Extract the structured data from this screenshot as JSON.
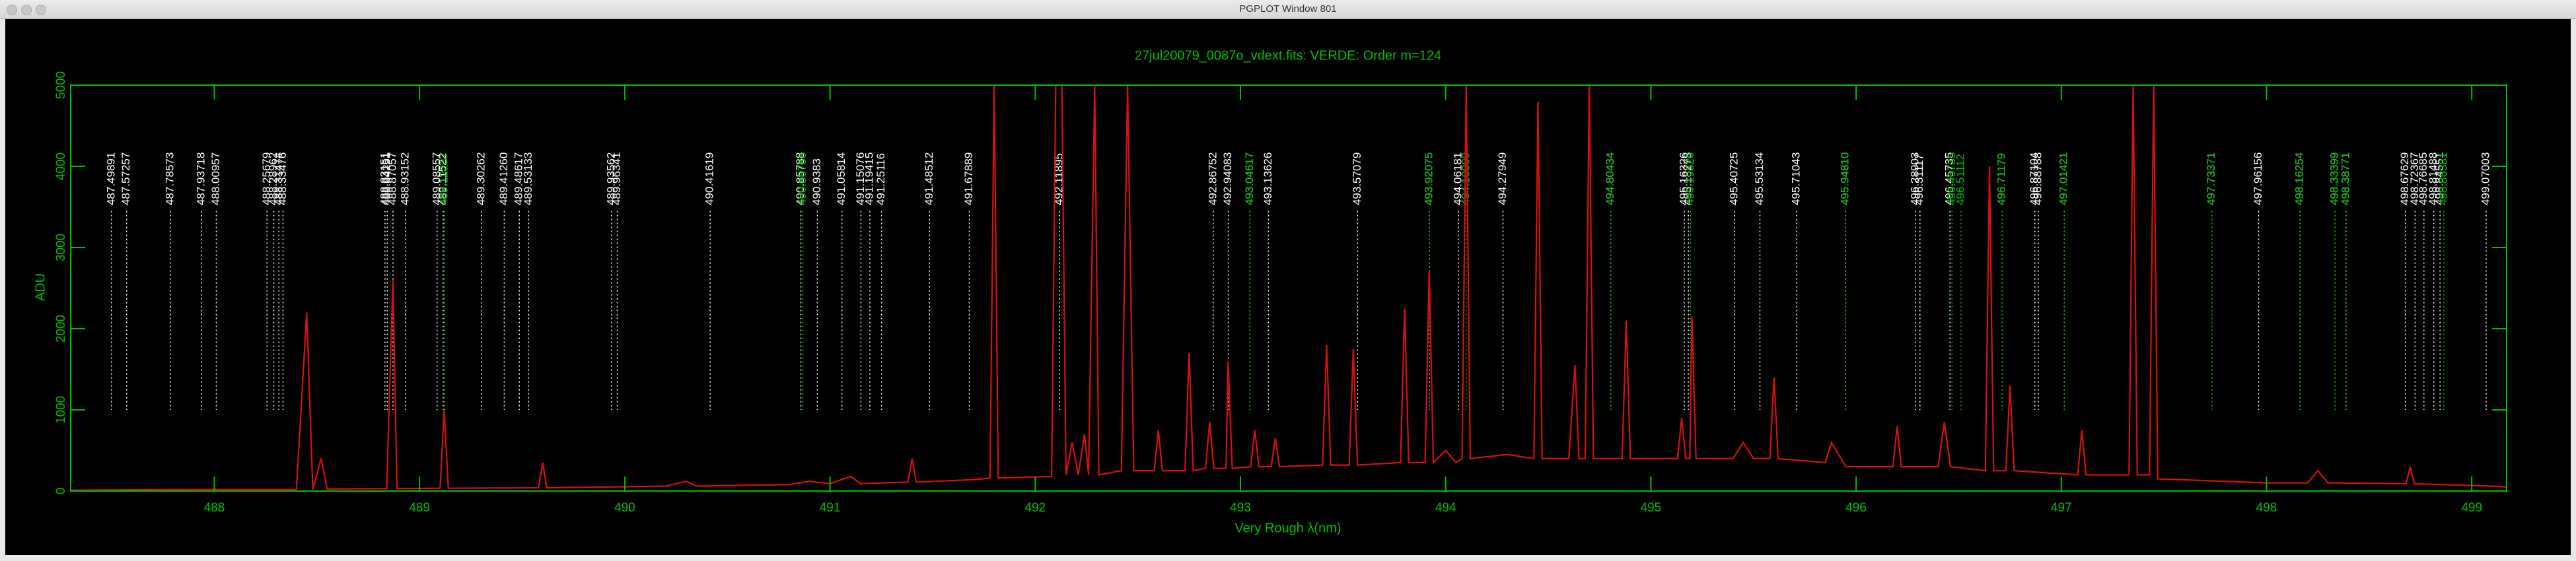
{
  "window_title": "PGPLOT Window 801",
  "chart_data": {
    "type": "line",
    "title": "27jul20079_0087o_vdext.fits: VERDE: Order m=124",
    "x_label": "Very Rough λ(nm)",
    "y_label": "ADU",
    "xlim": [
      487.3,
      499.17
    ],
    "ylim": [
      0,
      5000
    ],
    "xticks": [
      488,
      489,
      490,
      491,
      492,
      493,
      494,
      495,
      496,
      497,
      498,
      499
    ],
    "yticks": [
      0,
      1000,
      2000,
      3000,
      4000,
      5000
    ],
    "axis_color": "#00c000",
    "background": "#000000",
    "color": "#d81010",
    "x": [
      487.3,
      487.6,
      488.0,
      488.4,
      488.45,
      488.48,
      488.52,
      488.55,
      488.84,
      488.87,
      488.89,
      489.1,
      489.12,
      489.14,
      489.58,
      489.6,
      489.62,
      490.2,
      490.3,
      490.35,
      490.8,
      490.9,
      491.0,
      491.1,
      491.15,
      491.38,
      491.4,
      491.42,
      491.7,
      491.78,
      491.8,
      491.82,
      492.08,
      492.1,
      492.13,
      492.15,
      492.18,
      492.21,
      492.24,
      492.26,
      492.29,
      492.31,
      492.42,
      492.45,
      492.48,
      492.58,
      492.6,
      492.62,
      492.73,
      492.75,
      492.77,
      492.83,
      492.85,
      492.87,
      492.93,
      492.94,
      492.96,
      493.05,
      493.07,
      493.09,
      493.15,
      493.17,
      493.19,
      493.4,
      493.42,
      493.44,
      493.53,
      493.55,
      493.57,
      493.78,
      493.8,
      493.82,
      493.9,
      493.92,
      493.94,
      494.0,
      494.05,
      494.08,
      494.1,
      494.12,
      494.3,
      494.43,
      494.45,
      494.47,
      494.6,
      494.63,
      494.65,
      494.68,
      494.7,
      494.72,
      494.86,
      494.88,
      494.9,
      495.13,
      495.15,
      495.17,
      495.19,
      495.2,
      495.22,
      495.4,
      495.45,
      495.5,
      495.58,
      495.6,
      495.62,
      495.85,
      495.88,
      495.95,
      496.18,
      496.2,
      496.22,
      496.4,
      496.43,
      496.46,
      496.63,
      496.65,
      496.67,
      496.73,
      496.75,
      496.77,
      497.08,
      497.1,
      497.12,
      497.33,
      497.35,
      497.37,
      497.43,
      497.45,
      497.47,
      497.8,
      498.0,
      498.2,
      498.25,
      498.3,
      498.68,
      498.7,
      498.72,
      499.1,
      499.17
    ],
    "values": [
      10,
      15,
      20,
      20,
      2200,
      20,
      400,
      25,
      30,
      2600,
      30,
      35,
      1000,
      35,
      40,
      350,
      40,
      60,
      120,
      60,
      80,
      120,
      90,
      180,
      90,
      110,
      400,
      110,
      140,
      160,
      5000,
      160,
      180,
      5000,
      5000,
      200,
      600,
      200,
      700,
      200,
      5000,
      200,
      250,
      5000,
      250,
      250,
      750,
      250,
      250,
      1700,
      250,
      280,
      850,
      280,
      280,
      1600,
      280,
      300,
      750,
      300,
      300,
      650,
      300,
      320,
      1800,
      320,
      320,
      1750,
      320,
      350,
      2250,
      350,
      350,
      2700,
      350,
      500,
      350,
      400,
      5000,
      400,
      450,
      400,
      4800,
      400,
      400,
      1550,
      400,
      400,
      5000,
      400,
      400,
      2100,
      400,
      400,
      900,
      400,
      400,
      2150,
      400,
      400,
      600,
      400,
      400,
      1400,
      400,
      350,
      600,
      300,
      300,
      800,
      300,
      300,
      850,
      300,
      250,
      4000,
      250,
      250,
      1300,
      250,
      200,
      750,
      200,
      200,
      5000,
      200,
      200,
      5000,
      150,
      120,
      100,
      100,
      250,
      100,
      90,
      300,
      90,
      60,
      50
    ],
    "line_ids": [
      {
        "color": "#ffffff",
        "wavelengths": [
          487.49891,
          487.57257,
          487.78573,
          487.93718,
          488.00957,
          488.25679,
          488.28962,
          488.31474,
          488.33476,
          488.83151,
          488.84251,
          488.87057,
          488.93152,
          489.08557,
          489.11522,
          489.30262,
          {
            "value": 489.4126,
            "label": "489.41260"
          },
          489.48617,
          489.53133,
          489.93562,
          489.96341,
          490.41619,
          490.85788,
          490.9383,
          491.05814,
          491.15076,
          491.19415,
          491.25116,
          491.48512,
          491.67889,
          492.11895,
          492.86752,
          492.94083,
          493.04617,
          493.13626,
          493.57079,
          493.92075,
          494.06181,
          494.27949,
          494.80434,
          495.16326,
          495.18278,
          495.40725,
          495.53134,
          495.71043,
          {
            "value": 495.9481,
            "label": "495.94810"
          },
          496.28903,
          496.31117,
          496.45735,
          496.71179,
          496.87104,
          496.88788,
          497.01421,
          497.73371,
          497.96156,
          498.16254,
          498.33399,
          498.38771,
          498.67629,
          498.72367,
          498.76685,
          498.81488,
          498.84551,
          499.07003
        ]
      },
      {
        "color": "#00c000",
        "wavelengths": [
          489.12237,
          490.86788,
          493.04617,
          493.92075,
          494.10009,
          494.80434,
          495.19326,
          {
            "value": 495.9481,
            "label": "495.94810"
          },
          496.51112,
          496.46735,
          496.71179,
          497.01421,
          497.73371,
          498.16254,
          498.33399,
          498.38771,
          498.86381
        ]
      }
    ]
  }
}
